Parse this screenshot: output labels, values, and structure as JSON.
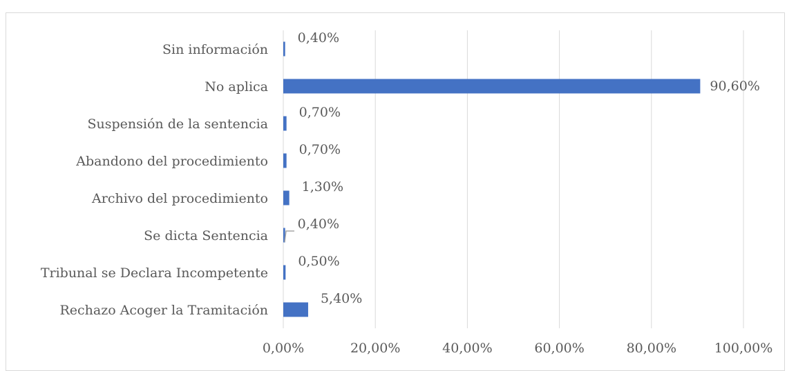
{
  "chart_data": {
    "type": "bar",
    "orientation": "horizontal",
    "categories": [
      "Sin información",
      "No aplica",
      "Suspensión de la sentencia",
      "Abandono del procedimiento",
      "Archivo del procedimiento",
      "Se dicta Sentencia",
      "Tribunal se Declara Incompetente",
      "Rechazo Acoger la Tramitación"
    ],
    "values": [
      0.4,
      90.6,
      0.7,
      0.7,
      1.3,
      0.4,
      0.5,
      5.4
    ],
    "data_labels": [
      "0,40%",
      "90,60%",
      "0,70%",
      "0,70%",
      "1,30%",
      "0,40%",
      "0,50%",
      "5,40%"
    ],
    "xlim": [
      0,
      100
    ],
    "x_ticks": [
      0,
      20,
      40,
      60,
      80,
      100
    ],
    "x_tick_labels": [
      "0,00%",
      "20,00%",
      "40,00%",
      "60,00%",
      "80,00%",
      "100,00%"
    ],
    "grid": true,
    "title": "",
    "xlabel": "",
    "ylabel": "",
    "bar_color": "#4472c4",
    "grid_color": "#d9d9d9",
    "text_color": "#595959"
  }
}
